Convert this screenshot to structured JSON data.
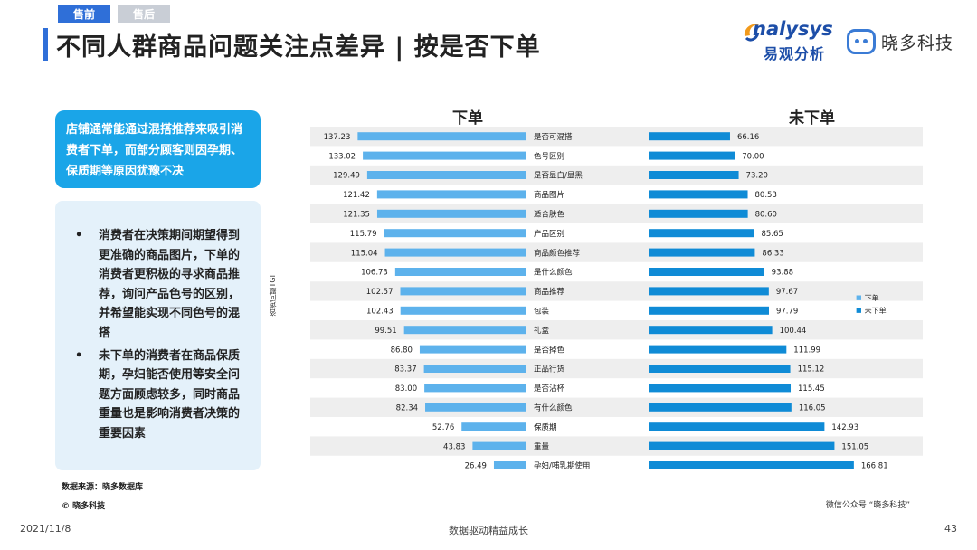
{
  "tabs": [
    {
      "label": "售前",
      "active": true
    },
    {
      "label": "售后",
      "active": false
    }
  ],
  "title": "不同人群商品问题关注点差异 | 按是否下单",
  "logos": {
    "analysys_en": "nalysys",
    "analysys_cn": "易观分析",
    "xiaoduo": "晓多科技"
  },
  "callout": "店铺通常能通过混搭推荐来吸引消费者下单，而部分顾客则因孕期、保质期等原因犹豫不决",
  "bullets": [
    {
      "dot": "•",
      "text": "消费者在决策期间期望得到更准确的商品图片，下单的消费者更积极的寻求商品推荐，询问产品色号的区别，并希望能实现不同色号的混搭"
    },
    {
      "dot": "•",
      "text": "未下单的消费者在商品保质期，孕妇能否使用等安全问题方面顾虑较多，同时商品重量也是影响消费者决策的重要因素"
    }
  ],
  "source": "数据来源：晓多数据库",
  "copyright": "© 晓多科技",
  "wechat": "微信公众号 “晓多科技”",
  "footer": {
    "date": "2021/11/8",
    "center": "数据驱动精益成长",
    "page": "43"
  },
  "chart_data": {
    "type": "bar",
    "orientation": "horizontal-butterfly",
    "ylabel": "咨询问题TGI",
    "categories": [
      "是否可混搭",
      "色号区别",
      "是否显白/显黑",
      "商品图片",
      "适合肤色",
      "产品区别",
      "商品颜色推荐",
      "是什么颜色",
      "商品推荐",
      "包装",
      "礼盒",
      "是否掉色",
      "正品行货",
      "是否沾杯",
      "有什么颜色",
      "保质期",
      "重量",
      "孕妇/哺乳期使用"
    ],
    "series": [
      {
        "name": "下单",
        "color": "#5db2ec",
        "values": [
          137.23,
          133.02,
          129.49,
          121.42,
          121.35,
          115.79,
          115.04,
          106.73,
          102.57,
          102.43,
          99.51,
          86.8,
          83.37,
          83.0,
          82.34,
          52.76,
          43.83,
          26.49
        ]
      },
      {
        "name": "未下单",
        "color": "#0f8bd6",
        "values": [
          66.16,
          70.0,
          73.2,
          80.53,
          80.6,
          85.65,
          86.33,
          93.88,
          97.67,
          97.79,
          100.44,
          111.99,
          115.12,
          115.45,
          116.05,
          142.93,
          151.05,
          166.81
        ]
      }
    ],
    "value_labels_left": [
      "137.23",
      "133.02",
      "129.49",
      "121.42",
      "121.35",
      "115.79",
      "115.04",
      "106.73",
      "102.57",
      "102.43",
      "99.51",
      "86.80",
      "83.37",
      "83.00",
      "82.34",
      "52.76",
      "43.83",
      "26.49"
    ],
    "value_labels_right": [
      "66.16",
      "70.00",
      "73.20",
      "80.53",
      "80.60",
      "85.65",
      "86.33",
      "93.88",
      "97.67",
      "97.79",
      "100.44",
      "111.99",
      "115.12",
      "115.45",
      "116.05",
      "142.93",
      "151.05",
      "166.81"
    ],
    "legend": [
      {
        "marker": "■",
        "label": "下单"
      },
      {
        "marker": "■",
        "label": "未下单"
      }
    ],
    "legend_position": "right",
    "grid": false
  }
}
